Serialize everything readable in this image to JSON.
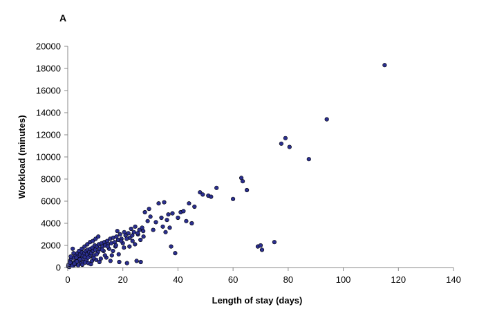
{
  "panel_label": "A",
  "chart_data": {
    "type": "scatter",
    "title": "",
    "xlabel": "Length of stay (days)",
    "ylabel": "Workload (minutes)",
    "xlim": [
      0,
      140
    ],
    "ylim": [
      0,
      20000
    ],
    "xticks": [
      0,
      20,
      40,
      60,
      80,
      100,
      120,
      140
    ],
    "yticks": [
      0,
      2000,
      4000,
      6000,
      8000,
      10000,
      12000,
      14000,
      16000,
      18000,
      20000
    ],
    "grid": false,
    "legend": "none",
    "marker_color": "#2b2f8f",
    "marker_edge": "#000000",
    "points": [
      [
        0.2,
        100
      ],
      [
        0.4,
        300
      ],
      [
        0.6,
        50
      ],
      [
        0.8,
        600
      ],
      [
        1,
        200
      ],
      [
        1.2,
        800
      ],
      [
        1.5,
        400
      ],
      [
        1.8,
        1700
      ],
      [
        2,
        150
      ],
      [
        2.2,
        900
      ],
      [
        2.5,
        500
      ],
      [
        2.8,
        1100
      ],
      [
        3,
        300
      ],
      [
        3.2,
        700
      ],
      [
        3.5,
        1300
      ],
      [
        3.8,
        200
      ],
      [
        4,
        1000
      ],
      [
        4.2,
        600
      ],
      [
        4.5,
        1200
      ],
      [
        4.8,
        350
      ],
      [
        5,
        1400
      ],
      [
        5.2,
        800
      ],
      [
        5.5,
        1100
      ],
      [
        5.8,
        500
      ],
      [
        6,
        1300
      ],
      [
        6.2,
        950
      ],
      [
        6.5,
        1500
      ],
      [
        6.8,
        700
      ],
      [
        7,
        1200
      ],
      [
        7.2,
        1600
      ],
      [
        7.5,
        400
      ],
      [
        7.8,
        1400
      ],
      [
        8,
        1000
      ],
      [
        8.2,
        1700
      ],
      [
        8.5,
        1300
      ],
      [
        8.8,
        600
      ],
      [
        9,
        1800
      ],
      [
        9.2,
        1500
      ],
      [
        9.5,
        1100
      ],
      [
        9.8,
        2000
      ],
      [
        10,
        1600
      ],
      [
        10.3,
        700
      ],
      [
        10.6,
        1900
      ],
      [
        11,
        1400
      ],
      [
        11.3,
        2100
      ],
      [
        11.6,
        1700
      ],
      [
        12,
        800
      ],
      [
        12.3,
        2200
      ],
      [
        12.6,
        1900
      ],
      [
        13,
        1500
      ],
      [
        13.3,
        2300
      ],
      [
        13.6,
        2000
      ],
      [
        14,
        900
      ],
      [
        14.3,
        2400
      ],
      [
        14.6,
        2100
      ],
      [
        15,
        1700
      ],
      [
        15.4,
        2600
      ],
      [
        15.8,
        2200
      ],
      [
        16,
        1100
      ],
      [
        16.5,
        2700
      ],
      [
        17,
        2300
      ],
      [
        17.3,
        1900
      ],
      [
        17.7,
        2800
      ],
      [
        18,
        3300
      ],
      [
        18.3,
        2500
      ],
      [
        18.7,
        500
      ],
      [
        19,
        3000
      ],
      [
        19.5,
        2600
      ],
      [
        20,
        2200
      ],
      [
        20.5,
        3200
      ],
      [
        21,
        2900
      ],
      [
        21.5,
        400
      ],
      [
        22,
        3100
      ],
      [
        22.5,
        2700
      ],
      [
        23,
        3500
      ],
      [
        23.5,
        2400
      ],
      [
        24,
        3200
      ],
      [
        24.5,
        3700
      ],
      [
        25,
        600
      ],
      [
        25.5,
        3000
      ],
      [
        26,
        3400
      ],
      [
        26.5,
        500
      ],
      [
        27,
        3600
      ],
      [
        27.5,
        2800
      ],
      [
        28,
        5000
      ],
      [
        29,
        4200
      ],
      [
        29.5,
        5300
      ],
      [
        30,
        4600
      ],
      [
        31,
        3400
      ],
      [
        32,
        4100
      ],
      [
        33,
        5800
      ],
      [
        34,
        4500
      ],
      [
        34.5,
        3700
      ],
      [
        35,
        5900
      ],
      [
        35.5,
        3200
      ],
      [
        36,
        4300
      ],
      [
        36.5,
        4800
      ],
      [
        37,
        3600
      ],
      [
        37.5,
        1900
      ],
      [
        38,
        4900
      ],
      [
        39,
        1300
      ],
      [
        40,
        4500
      ],
      [
        41,
        5000
      ],
      [
        42,
        5100
      ],
      [
        43,
        4200
      ],
      [
        44,
        5800
      ],
      [
        45,
        4000
      ],
      [
        46,
        5500
      ],
      [
        48,
        6800
      ],
      [
        49,
        6600
      ],
      [
        51,
        6500
      ],
      [
        52,
        6400
      ],
      [
        54,
        7200
      ],
      [
        60,
        6200
      ],
      [
        63,
        8100
      ],
      [
        63.5,
        7800
      ],
      [
        65,
        7000
      ],
      [
        69,
        1900
      ],
      [
        70,
        2000
      ],
      [
        70.5,
        1600
      ],
      [
        75,
        2300
      ],
      [
        77.5,
        11200
      ],
      [
        79,
        11700
      ],
      [
        80.5,
        10900
      ],
      [
        87.5,
        9800
      ],
      [
        94,
        13400
      ],
      [
        115,
        18300
      ],
      [
        0.3,
        250
      ],
      [
        0.9,
        450
      ],
      [
        1.6,
        150
      ],
      [
        2.4,
        350
      ],
      [
        3.3,
        550
      ],
      [
        4.4,
        750
      ],
      [
        5.3,
        250
      ],
      [
        6.3,
        450
      ],
      [
        7.4,
        900
      ],
      [
        8.4,
        300
      ],
      [
        9.4,
        850
      ],
      [
        10.5,
        1200
      ],
      [
        11.5,
        500
      ],
      [
        12.5,
        1600
      ],
      [
        13.5,
        1100
      ],
      [
        14.5,
        1900
      ],
      [
        15.5,
        600
      ],
      [
        16.4,
        1500
      ],
      [
        17.5,
        2000
      ],
      [
        18.5,
        1200
      ],
      [
        19.4,
        2400
      ],
      [
        20.4,
        1800
      ],
      [
        21.4,
        2600
      ],
      [
        22.4,
        1900
      ],
      [
        23.4,
        2900
      ],
      [
        24.4,
        2100
      ],
      [
        25.4,
        3100
      ],
      [
        26.4,
        2500
      ],
      [
        27.4,
        3300
      ],
      [
        1.1,
        1000
      ],
      [
        2.1,
        1300
      ],
      [
        3.1,
        900
      ],
      [
        4.1,
        1500
      ],
      [
        5.1,
        1700
      ],
      [
        6.1,
        1900
      ],
      [
        7.1,
        2100
      ],
      [
        8.1,
        2300
      ],
      [
        9.1,
        2400
      ],
      [
        10.1,
        2600
      ],
      [
        11.1,
        2800
      ]
    ]
  }
}
